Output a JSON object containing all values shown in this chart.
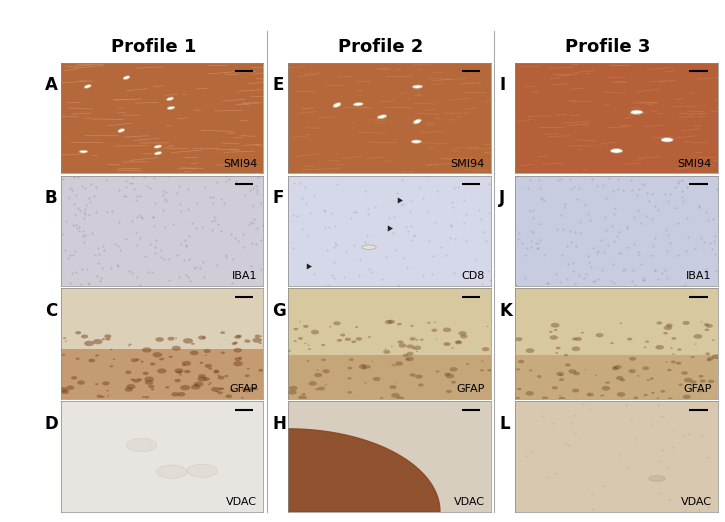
{
  "profile_titles": [
    "Profile 1",
    "Profile 2",
    "Profile 3"
  ],
  "panel_labels_per_col": [
    [
      "A",
      "B",
      "C",
      "D"
    ],
    [
      "E",
      "F",
      "G",
      "H"
    ],
    [
      "I",
      "J",
      "K",
      "L"
    ]
  ],
  "stain_labels": {
    "A": "SMI94",
    "B": "IBA1",
    "C": "GFAP",
    "D": "VDAC",
    "E": "SMI94",
    "F": "CD8",
    "G": "GFAP",
    "H": "VDAC",
    "I": "SMI94",
    "J": "IBA1",
    "K": "GFAP",
    "L": "VDAC"
  },
  "label_fontsize": 12,
  "title_fontsize": 13,
  "stain_fontsize": 8
}
